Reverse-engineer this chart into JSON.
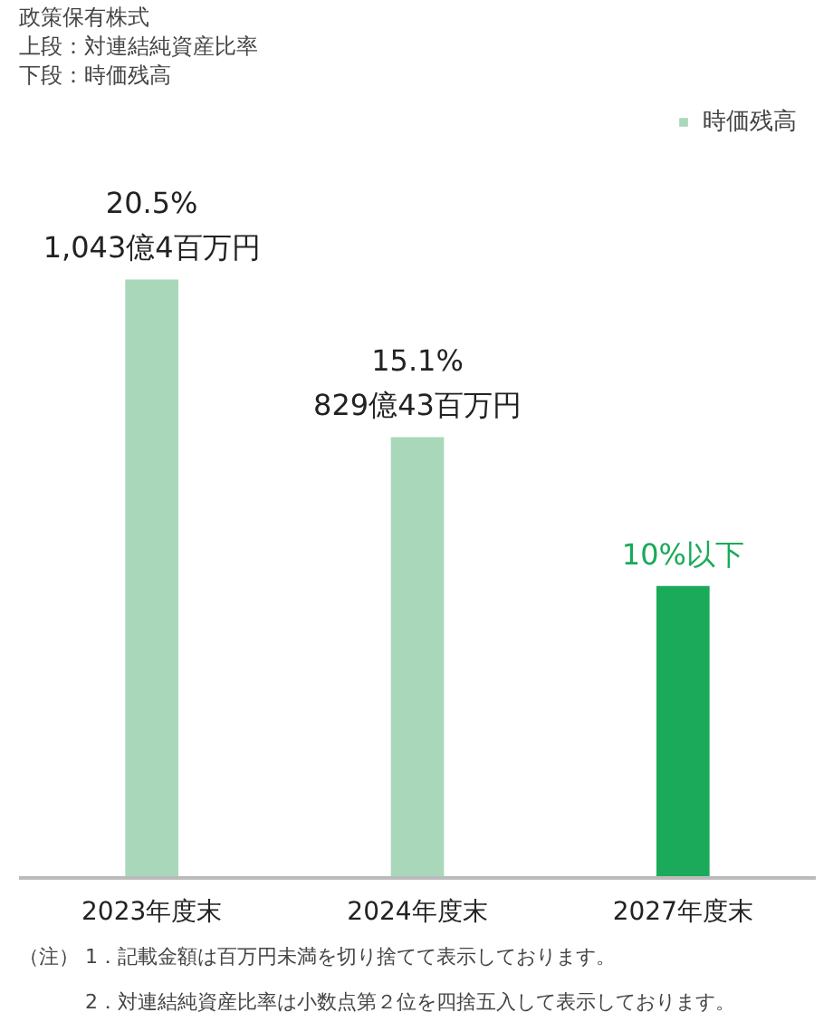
{
  "chart_data": {
    "type": "bar",
    "title": "政策保有株式",
    "subtitle": "上段：対連結純資産比率",
    "categories": [
      "2023年度末",
      "2024年度末",
      "2027年度末"
    ],
    "tick_labels": "x",
    "series": [
      {
        "name": "時価残高",
        "color": "#a8d8b9",
        "colors": [
          "#a8d8b9",
          "#a8d8b9",
          "#1aaa5a"
        ],
        "values": [
          20.5,
          15.1,
          10
        ],
        "value_labels": [
          "20.5%\n1,043億4百万円",
          "15.1%\n829億43百万円",
          "10%以下"
        ]
      }
    ],
    "legend": "top right",
    "grid": false,
    "annotations": [
      "下段：時価残高",
      "（注） 1．記載金額は百万円未満を切り捨てて表示しております。",
      "　　　 2．対連結純資産比率は小数点第２位を四捨五入して表示しております。"
    ]
  }
}
